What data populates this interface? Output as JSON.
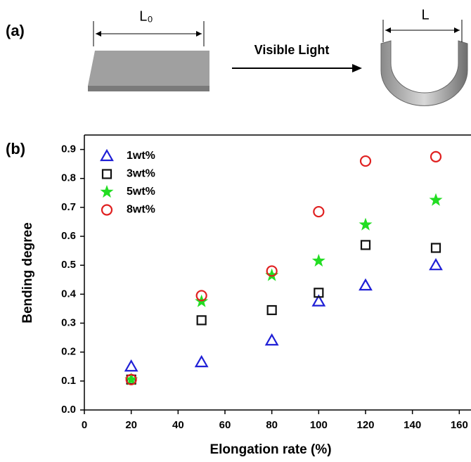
{
  "panel_a": {
    "label": "(a)",
    "length_before": "L₀",
    "arrow_label": "Visible Light",
    "length_after": "L"
  },
  "chart_data": {
    "type": "scatter",
    "panel_label": "(b)",
    "x_label": "Elongation rate (%)",
    "y_label": "Bending degree",
    "x": [
      20,
      50,
      80,
      100,
      120,
      150
    ],
    "series": [
      {
        "name": "1wt%",
        "color": "#1f1fd6",
        "marker": "triangle",
        "values": [
          0.15,
          0.165,
          0.24,
          0.375,
          0.43,
          0.5
        ]
      },
      {
        "name": "3wt%",
        "color": "#111111",
        "marker": "square",
        "values": [
          0.105,
          0.31,
          0.345,
          0.405,
          0.57,
          0.56
        ]
      },
      {
        "name": "5wt%",
        "color": "#22dd22",
        "marker": "star",
        "values": [
          0.105,
          0.375,
          0.465,
          0.515,
          0.64,
          0.725
        ]
      },
      {
        "name": "8wt%",
        "color": "#e02020",
        "marker": "circle",
        "values": [
          0.105,
          0.395,
          0.48,
          0.685,
          0.86,
          0.875
        ]
      }
    ],
    "xlim": [
      0,
      165
    ],
    "xticks": [
      0,
      20,
      40,
      60,
      80,
      100,
      120,
      140,
      160
    ],
    "ylim": [
      0,
      0.95
    ],
    "yticks": [
      {
        "value": 0,
        "label": "0.0"
      },
      0.1,
      0.2,
      0.3,
      0.4,
      0.5,
      0.6,
      0.7,
      0.8,
      0.9
    ],
    "legend": "upper-left",
    "grid": false
  }
}
